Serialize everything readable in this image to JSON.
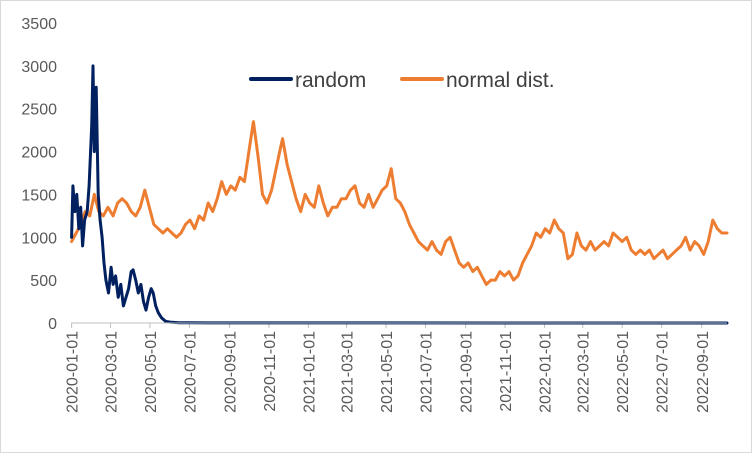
{
  "chart_data": {
    "type": "line",
    "title": "",
    "xlabel": "",
    "ylabel": "",
    "ylim": [
      0,
      3500
    ],
    "y_ticks": [
      0,
      500,
      1000,
      1500,
      2000,
      2500,
      3000,
      3500
    ],
    "x_range": [
      "2019-12-31",
      "2022-10-10"
    ],
    "x_tick_labels": [
      "2020-01-01",
      "2020-03-01",
      "2020-05-01",
      "2020-07-01",
      "2020-09-01",
      "2020-11-01",
      "2021-01-01",
      "2021-03-01",
      "2021-05-01",
      "2021-07-01",
      "2021-09-01",
      "2021-11-01",
      "2022-01-01",
      "2022-03-01",
      "2022-05-01",
      "2022-07-01",
      "2022-09-01"
    ],
    "grid": false,
    "legend_position": "top-center",
    "series": [
      {
        "name": "random",
        "color": "#002060",
        "points": [
          [
            "2020-01-01",
            1000
          ],
          [
            "2020-01-03",
            1600
          ],
          [
            "2020-01-06",
            1300
          ],
          [
            "2020-01-09",
            1500
          ],
          [
            "2020-01-12",
            1100
          ],
          [
            "2020-01-15",
            1350
          ],
          [
            "2020-01-18",
            900
          ],
          [
            "2020-01-21",
            1200
          ],
          [
            "2020-01-25",
            1300
          ],
          [
            "2020-01-28",
            1600
          ],
          [
            "2020-02-01",
            2300
          ],
          [
            "2020-02-03",
            3000
          ],
          [
            "2020-02-05",
            2000
          ],
          [
            "2020-02-08",
            2750
          ],
          [
            "2020-02-11",
            1500
          ],
          [
            "2020-02-14",
            1200
          ],
          [
            "2020-02-17",
            1000
          ],
          [
            "2020-02-20",
            700
          ],
          [
            "2020-02-23",
            500
          ],
          [
            "2020-02-27",
            350
          ],
          [
            "2020-03-02",
            650
          ],
          [
            "2020-03-05",
            450
          ],
          [
            "2020-03-09",
            550
          ],
          [
            "2020-03-13",
            300
          ],
          [
            "2020-03-17",
            450
          ],
          [
            "2020-03-21",
            200
          ],
          [
            "2020-03-25",
            300
          ],
          [
            "2020-03-29",
            400
          ],
          [
            "2020-04-02",
            600
          ],
          [
            "2020-04-05",
            620
          ],
          [
            "2020-04-09",
            500
          ],
          [
            "2020-04-13",
            350
          ],
          [
            "2020-04-17",
            450
          ],
          [
            "2020-04-21",
            250
          ],
          [
            "2020-04-25",
            150
          ],
          [
            "2020-04-29",
            300
          ],
          [
            "2020-05-03",
            400
          ],
          [
            "2020-05-06",
            350
          ],
          [
            "2020-05-10",
            200
          ],
          [
            "2020-05-14",
            120
          ],
          [
            "2020-05-19",
            60
          ],
          [
            "2020-05-25",
            20
          ],
          [
            "2020-06-01",
            10
          ],
          [
            "2020-06-15",
            4
          ],
          [
            "2020-07-01",
            2
          ],
          [
            "2020-08-01",
            1
          ],
          [
            "2022-10-10",
            0
          ]
        ]
      },
      {
        "name": "normal dist.",
        "color": "#ED7D31",
        "points": [
          [
            "2020-01-01",
            950
          ],
          [
            "2020-01-08",
            1050
          ],
          [
            "2020-01-15",
            1150
          ],
          [
            "2020-01-22",
            1300
          ],
          [
            "2020-01-29",
            1250
          ],
          [
            "2020-02-05",
            1500
          ],
          [
            "2020-02-12",
            1300
          ],
          [
            "2020-02-19",
            1250
          ],
          [
            "2020-02-26",
            1350
          ],
          [
            "2020-03-05",
            1250
          ],
          [
            "2020-03-12",
            1400
          ],
          [
            "2020-03-19",
            1450
          ],
          [
            "2020-03-26",
            1400
          ],
          [
            "2020-04-02",
            1300
          ],
          [
            "2020-04-09",
            1250
          ],
          [
            "2020-04-16",
            1350
          ],
          [
            "2020-04-23",
            1550
          ],
          [
            "2020-04-30",
            1350
          ],
          [
            "2020-05-07",
            1150
          ],
          [
            "2020-05-14",
            1100
          ],
          [
            "2020-05-21",
            1050
          ],
          [
            "2020-05-28",
            1100
          ],
          [
            "2020-06-04",
            1050
          ],
          [
            "2020-06-11",
            1000
          ],
          [
            "2020-06-18",
            1050
          ],
          [
            "2020-06-25",
            1150
          ],
          [
            "2020-07-02",
            1200
          ],
          [
            "2020-07-09",
            1100
          ],
          [
            "2020-07-16",
            1250
          ],
          [
            "2020-07-23",
            1200
          ],
          [
            "2020-07-30",
            1400
          ],
          [
            "2020-08-06",
            1300
          ],
          [
            "2020-08-13",
            1450
          ],
          [
            "2020-08-20",
            1650
          ],
          [
            "2020-08-27",
            1500
          ],
          [
            "2020-09-03",
            1600
          ],
          [
            "2020-09-10",
            1550
          ],
          [
            "2020-09-17",
            1700
          ],
          [
            "2020-09-24",
            1650
          ],
          [
            "2020-10-01",
            2000
          ],
          [
            "2020-10-08",
            2350
          ],
          [
            "2020-10-15",
            1950
          ],
          [
            "2020-10-22",
            1500
          ],
          [
            "2020-10-29",
            1400
          ],
          [
            "2020-11-05",
            1550
          ],
          [
            "2020-11-12",
            1800
          ],
          [
            "2020-11-19",
            2050
          ],
          [
            "2020-11-22",
            2150
          ],
          [
            "2020-11-29",
            1850
          ],
          [
            "2020-12-06",
            1650
          ],
          [
            "2020-12-13",
            1450
          ],
          [
            "2020-12-20",
            1300
          ],
          [
            "2020-12-27",
            1500
          ],
          [
            "2021-01-03",
            1400
          ],
          [
            "2021-01-10",
            1350
          ],
          [
            "2021-01-17",
            1600
          ],
          [
            "2021-01-24",
            1400
          ],
          [
            "2021-01-31",
            1250
          ],
          [
            "2021-02-07",
            1350
          ],
          [
            "2021-02-14",
            1350
          ],
          [
            "2021-02-21",
            1450
          ],
          [
            "2021-02-28",
            1450
          ],
          [
            "2021-03-07",
            1550
          ],
          [
            "2021-03-14",
            1600
          ],
          [
            "2021-03-21",
            1400
          ],
          [
            "2021-03-28",
            1350
          ],
          [
            "2021-04-04",
            1500
          ],
          [
            "2021-04-11",
            1350
          ],
          [
            "2021-04-18",
            1450
          ],
          [
            "2021-04-25",
            1550
          ],
          [
            "2021-05-02",
            1600
          ],
          [
            "2021-05-09",
            1800
          ],
          [
            "2021-05-16",
            1450
          ],
          [
            "2021-05-23",
            1400
          ],
          [
            "2021-05-30",
            1300
          ],
          [
            "2021-06-06",
            1150
          ],
          [
            "2021-06-13",
            1050
          ],
          [
            "2021-06-20",
            950
          ],
          [
            "2021-06-27",
            900
          ],
          [
            "2021-07-04",
            850
          ],
          [
            "2021-07-11",
            950
          ],
          [
            "2021-07-18",
            850
          ],
          [
            "2021-07-25",
            800
          ],
          [
            "2021-08-01",
            950
          ],
          [
            "2021-08-08",
            1000
          ],
          [
            "2021-08-15",
            850
          ],
          [
            "2021-08-22",
            700
          ],
          [
            "2021-08-29",
            650
          ],
          [
            "2021-09-05",
            700
          ],
          [
            "2021-09-12",
            600
          ],
          [
            "2021-09-19",
            650
          ],
          [
            "2021-09-26",
            550
          ],
          [
            "2021-10-03",
            450
          ],
          [
            "2021-10-10",
            500
          ],
          [
            "2021-10-17",
            500
          ],
          [
            "2021-10-24",
            600
          ],
          [
            "2021-10-31",
            550
          ],
          [
            "2021-11-07",
            600
          ],
          [
            "2021-11-14",
            500
          ],
          [
            "2021-11-21",
            550
          ],
          [
            "2021-11-28",
            700
          ],
          [
            "2021-12-05",
            800
          ],
          [
            "2021-12-12",
            900
          ],
          [
            "2021-12-19",
            1050
          ],
          [
            "2021-12-26",
            1000
          ],
          [
            "2022-01-02",
            1100
          ],
          [
            "2022-01-09",
            1050
          ],
          [
            "2022-01-16",
            1200
          ],
          [
            "2022-01-23",
            1100
          ],
          [
            "2022-01-30",
            1050
          ],
          [
            "2022-02-06",
            750
          ],
          [
            "2022-02-13",
            800
          ],
          [
            "2022-02-20",
            1050
          ],
          [
            "2022-02-27",
            900
          ],
          [
            "2022-03-06",
            850
          ],
          [
            "2022-03-13",
            950
          ],
          [
            "2022-03-20",
            850
          ],
          [
            "2022-03-27",
            900
          ],
          [
            "2022-04-03",
            950
          ],
          [
            "2022-04-10",
            900
          ],
          [
            "2022-04-17",
            1050
          ],
          [
            "2022-04-24",
            1000
          ],
          [
            "2022-05-01",
            950
          ],
          [
            "2022-05-08",
            1000
          ],
          [
            "2022-05-15",
            850
          ],
          [
            "2022-05-22",
            800
          ],
          [
            "2022-05-29",
            850
          ],
          [
            "2022-06-05",
            800
          ],
          [
            "2022-06-12",
            850
          ],
          [
            "2022-06-19",
            750
          ],
          [
            "2022-06-26",
            800
          ],
          [
            "2022-07-03",
            850
          ],
          [
            "2022-07-10",
            750
          ],
          [
            "2022-07-17",
            800
          ],
          [
            "2022-07-24",
            850
          ],
          [
            "2022-07-31",
            900
          ],
          [
            "2022-08-07",
            1000
          ],
          [
            "2022-08-14",
            850
          ],
          [
            "2022-08-21",
            950
          ],
          [
            "2022-08-28",
            900
          ],
          [
            "2022-09-04",
            800
          ],
          [
            "2022-09-11",
            950
          ],
          [
            "2022-09-18",
            1200
          ],
          [
            "2022-09-25",
            1100
          ],
          [
            "2022-10-02",
            1050
          ],
          [
            "2022-10-10",
            1050
          ]
        ]
      }
    ]
  }
}
